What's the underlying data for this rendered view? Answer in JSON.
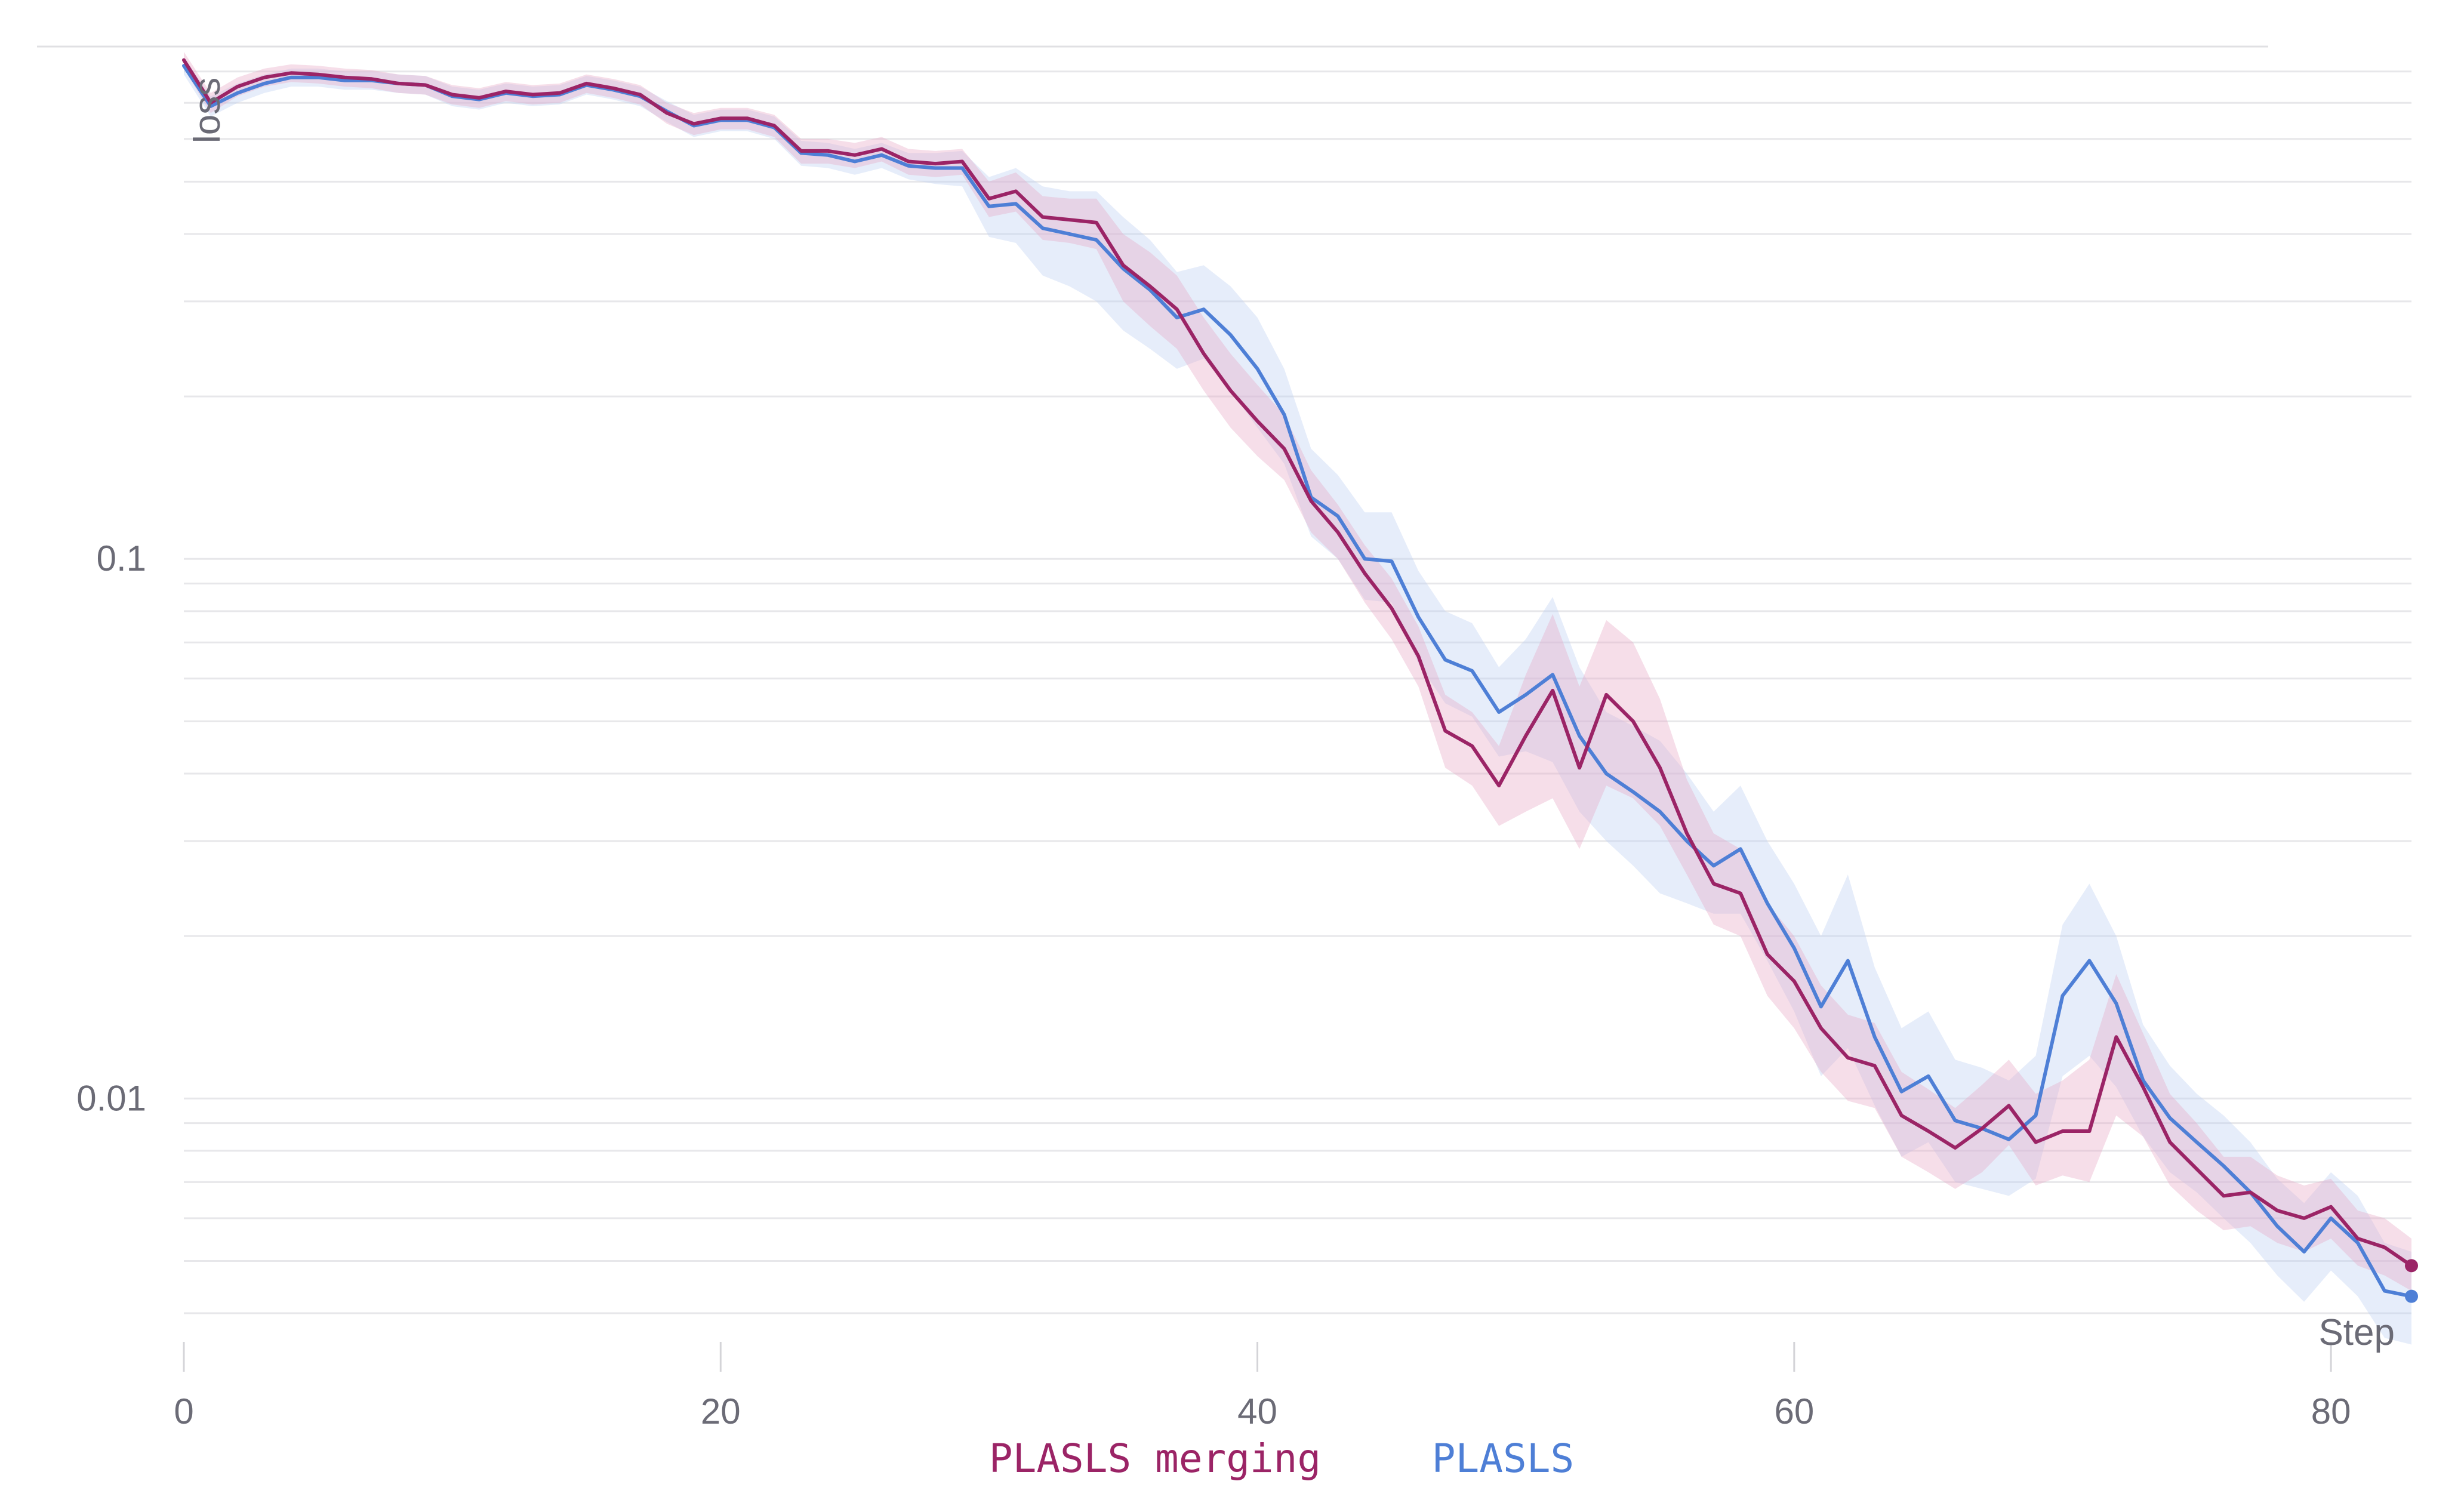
{
  "chart_data": {
    "type": "line",
    "title": "",
    "xlabel": "Step",
    "ylabel": "loss",
    "y_scale": "log",
    "xlim": [
      0,
      83
    ],
    "ylim": [
      0.0039,
      0.85
    ],
    "x_ticks": [
      0,
      20,
      40,
      60,
      80
    ],
    "x_tick_labels": [
      "0",
      "20",
      "40",
      "60",
      "80"
    ],
    "y_ticks": [
      0.1,
      0.01
    ],
    "y_tick_labels": [
      "0.1",
      "0.01"
    ],
    "grid": true,
    "legend_position": "bottom-center",
    "series": [
      {
        "name": "PLASLS merging",
        "color": "#9b2466",
        "band_color": "#e8a9c5",
        "x": [
          0,
          1,
          2,
          3,
          4,
          5,
          6,
          7,
          8,
          9,
          10,
          11,
          12,
          13,
          14,
          15,
          16,
          17,
          18,
          19,
          20,
          21,
          22,
          23,
          24,
          25,
          26,
          27,
          28,
          29,
          30,
          31,
          32,
          33,
          34,
          35,
          36,
          37,
          38,
          39,
          40,
          41,
          42,
          43,
          44,
          45,
          46,
          47,
          48,
          49,
          50,
          51,
          52,
          53,
          54,
          55,
          56,
          57,
          58,
          59,
          60,
          61,
          62,
          63,
          64,
          65,
          66,
          67,
          68,
          69,
          70,
          71,
          72,
          73,
          74,
          75,
          76,
          77,
          78,
          79,
          80,
          81,
          82,
          83
        ],
        "y": [
          0.84,
          0.7,
          0.75,
          0.78,
          0.795,
          0.79,
          0.78,
          0.775,
          0.76,
          0.755,
          0.725,
          0.715,
          0.735,
          0.725,
          0.73,
          0.76,
          0.745,
          0.725,
          0.67,
          0.64,
          0.655,
          0.655,
          0.635,
          0.57,
          0.57,
          0.56,
          0.575,
          0.545,
          0.54,
          0.545,
          0.465,
          0.48,
          0.43,
          0.425,
          0.42,
          0.35,
          0.32,
          0.29,
          0.24,
          0.205,
          0.18,
          0.16,
          0.128,
          0.112,
          0.094,
          0.081,
          0.066,
          0.048,
          0.045,
          0.038,
          0.047,
          0.057,
          0.041,
          0.056,
          0.05,
          0.041,
          0.031,
          0.025,
          0.024,
          0.0185,
          0.0165,
          0.0135,
          0.0119,
          0.0115,
          0.0093,
          0.0087,
          0.0081,
          0.0088,
          0.0097,
          0.0083,
          0.0087,
          0.0087,
          0.013,
          0.0105,
          0.0083,
          0.0074,
          0.0066,
          0.0067,
          0.0062,
          0.006,
          0.0063,
          0.0055,
          0.0053,
          0.0049
        ],
        "lower": [
          0.81,
          0.67,
          0.72,
          0.75,
          0.765,
          0.76,
          0.75,
          0.745,
          0.73,
          0.725,
          0.695,
          0.685,
          0.705,
          0.695,
          0.7,
          0.73,
          0.715,
          0.695,
          0.64,
          0.61,
          0.625,
          0.625,
          0.605,
          0.54,
          0.54,
          0.53,
          0.545,
          0.515,
          0.51,
          0.515,
          0.43,
          0.44,
          0.39,
          0.385,
          0.375,
          0.3,
          0.27,
          0.245,
          0.205,
          0.175,
          0.155,
          0.14,
          0.112,
          0.1,
          0.083,
          0.071,
          0.058,
          0.041,
          0.038,
          0.032,
          0.034,
          0.036,
          0.029,
          0.038,
          0.036,
          0.032,
          0.026,
          0.021,
          0.02,
          0.0155,
          0.0135,
          0.0112,
          0.0099,
          0.0096,
          0.0078,
          0.0073,
          0.0068,
          0.0073,
          0.0082,
          0.0069,
          0.0072,
          0.007,
          0.0093,
          0.0085,
          0.0069,
          0.0062,
          0.0057,
          0.0058,
          0.0054,
          0.0052,
          0.0055,
          0.0049,
          0.0047,
          0.0044
        ],
        "upper": [
          0.87,
          0.73,
          0.78,
          0.81,
          0.825,
          0.82,
          0.81,
          0.805,
          0.79,
          0.785,
          0.755,
          0.745,
          0.765,
          0.755,
          0.76,
          0.79,
          0.775,
          0.755,
          0.7,
          0.67,
          0.685,
          0.685,
          0.665,
          0.6,
          0.6,
          0.59,
          0.605,
          0.575,
          0.57,
          0.575,
          0.5,
          0.52,
          0.47,
          0.465,
          0.465,
          0.4,
          0.37,
          0.335,
          0.28,
          0.24,
          0.21,
          0.185,
          0.146,
          0.126,
          0.106,
          0.092,
          0.075,
          0.056,
          0.052,
          0.045,
          0.061,
          0.079,
          0.058,
          0.077,
          0.07,
          0.055,
          0.039,
          0.031,
          0.029,
          0.023,
          0.02,
          0.0162,
          0.0143,
          0.0138,
          0.0112,
          0.0104,
          0.0096,
          0.0106,
          0.0118,
          0.0102,
          0.0108,
          0.0118,
          0.017,
          0.0132,
          0.0102,
          0.009,
          0.0078,
          0.0078,
          0.0072,
          0.0069,
          0.0071,
          0.0062,
          0.006,
          0.0055
        ]
      },
      {
        "name": "PLASLS",
        "color": "#4e7fd6",
        "band_color": "#bcd0f3",
        "x": [
          0,
          1,
          2,
          3,
          4,
          5,
          6,
          7,
          8,
          9,
          10,
          11,
          12,
          13,
          14,
          15,
          16,
          17,
          18,
          19,
          20,
          21,
          22,
          23,
          24,
          25,
          26,
          27,
          28,
          29,
          30,
          31,
          32,
          33,
          34,
          35,
          36,
          37,
          38,
          39,
          40,
          41,
          42,
          43,
          44,
          45,
          46,
          47,
          48,
          49,
          50,
          51,
          52,
          53,
          54,
          55,
          56,
          57,
          58,
          59,
          60,
          61,
          62,
          63,
          64,
          65,
          66,
          67,
          68,
          69,
          70,
          71,
          72,
          73,
          74,
          75,
          76,
          77,
          78,
          79,
          80,
          81,
          82,
          83
        ],
        "y": [
          0.82,
          0.69,
          0.73,
          0.76,
          0.78,
          0.78,
          0.77,
          0.77,
          0.76,
          0.755,
          0.72,
          0.71,
          0.73,
          0.72,
          0.725,
          0.755,
          0.74,
          0.72,
          0.675,
          0.635,
          0.65,
          0.65,
          0.63,
          0.565,
          0.56,
          0.545,
          0.56,
          0.535,
          0.53,
          0.53,
          0.45,
          0.455,
          0.41,
          0.4,
          0.39,
          0.345,
          0.315,
          0.28,
          0.29,
          0.26,
          0.225,
          0.185,
          0.13,
          0.12,
          0.1,
          0.099,
          0.078,
          0.065,
          0.062,
          0.052,
          0.056,
          0.061,
          0.047,
          0.04,
          0.037,
          0.034,
          0.03,
          0.027,
          0.029,
          0.023,
          0.019,
          0.0148,
          0.018,
          0.013,
          0.0103,
          0.011,
          0.0091,
          0.0088,
          0.0084,
          0.0093,
          0.0155,
          0.018,
          0.015,
          0.0108,
          0.0092,
          0.0083,
          0.0075,
          0.0067,
          0.0058,
          0.0052,
          0.006,
          0.0054,
          0.0044,
          0.0043
        ],
        "lower": [
          0.79,
          0.66,
          0.7,
          0.73,
          0.75,
          0.75,
          0.74,
          0.74,
          0.73,
          0.725,
          0.69,
          0.68,
          0.7,
          0.69,
          0.695,
          0.725,
          0.71,
          0.69,
          0.645,
          0.605,
          0.62,
          0.62,
          0.6,
          0.535,
          0.53,
          0.515,
          0.53,
          0.505,
          0.495,
          0.49,
          0.395,
          0.385,
          0.335,
          0.32,
          0.3,
          0.265,
          0.245,
          0.225,
          0.235,
          0.205,
          0.175,
          0.15,
          0.11,
          0.1,
          0.084,
          0.083,
          0.064,
          0.054,
          0.051,
          0.043,
          0.044,
          0.042,
          0.034,
          0.03,
          0.027,
          0.024,
          0.023,
          0.022,
          0.022,
          0.018,
          0.0145,
          0.011,
          0.0124,
          0.0097,
          0.0078,
          0.0083,
          0.007,
          0.0068,
          0.0066,
          0.0071,
          0.011,
          0.012,
          0.0105,
          0.0085,
          0.0073,
          0.0067,
          0.006,
          0.0054,
          0.0047,
          0.0042,
          0.0048,
          0.0043,
          0.0036,
          0.0035
        ],
        "upper": [
          0.85,
          0.72,
          0.76,
          0.79,
          0.81,
          0.81,
          0.8,
          0.8,
          0.79,
          0.785,
          0.75,
          0.74,
          0.76,
          0.75,
          0.755,
          0.785,
          0.77,
          0.75,
          0.705,
          0.665,
          0.68,
          0.68,
          0.66,
          0.595,
          0.59,
          0.575,
          0.59,
          0.565,
          0.565,
          0.57,
          0.51,
          0.53,
          0.49,
          0.48,
          0.48,
          0.43,
          0.39,
          0.34,
          0.35,
          0.32,
          0.28,
          0.225,
          0.16,
          0.143,
          0.122,
          0.122,
          0.095,
          0.08,
          0.076,
          0.063,
          0.071,
          0.085,
          0.063,
          0.052,
          0.049,
          0.046,
          0.04,
          0.034,
          0.038,
          0.03,
          0.025,
          0.02,
          0.026,
          0.0175,
          0.0135,
          0.0145,
          0.0118,
          0.0114,
          0.0108,
          0.012,
          0.021,
          0.025,
          0.02,
          0.0137,
          0.0115,
          0.0102,
          0.0093,
          0.0083,
          0.0071,
          0.0064,
          0.0073,
          0.0066,
          0.0054,
          0.0052
        ]
      }
    ]
  }
}
